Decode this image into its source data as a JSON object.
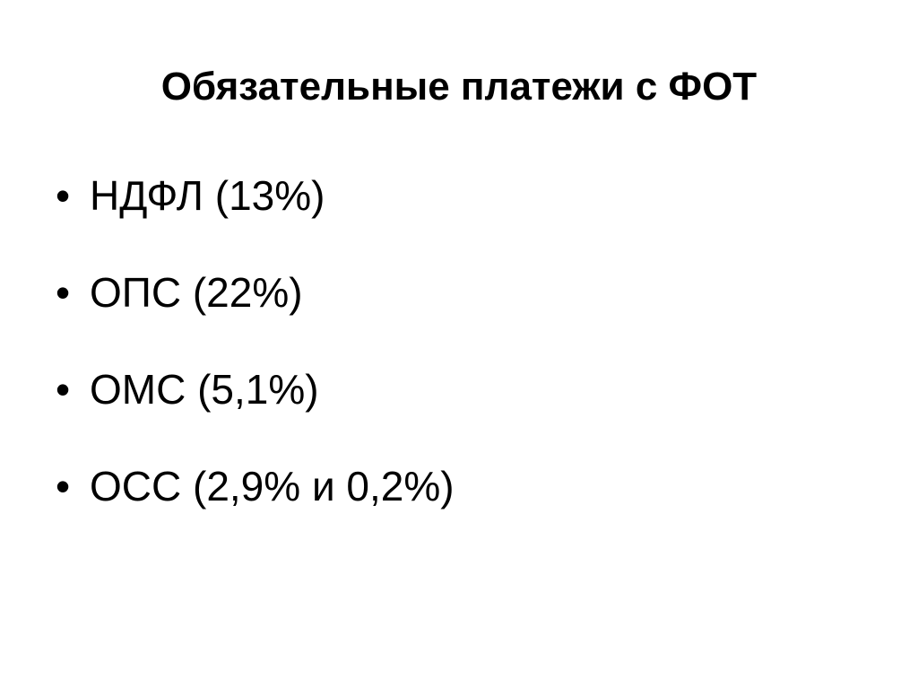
{
  "title": "Обязательные платежи с ФОТ",
  "bullet": "•",
  "items": [
    "НДФЛ (13%)",
    "ОПС (22%)",
    "ОМС (5,1%)",
    "ОСС (2,9% и 0,2%)"
  ]
}
